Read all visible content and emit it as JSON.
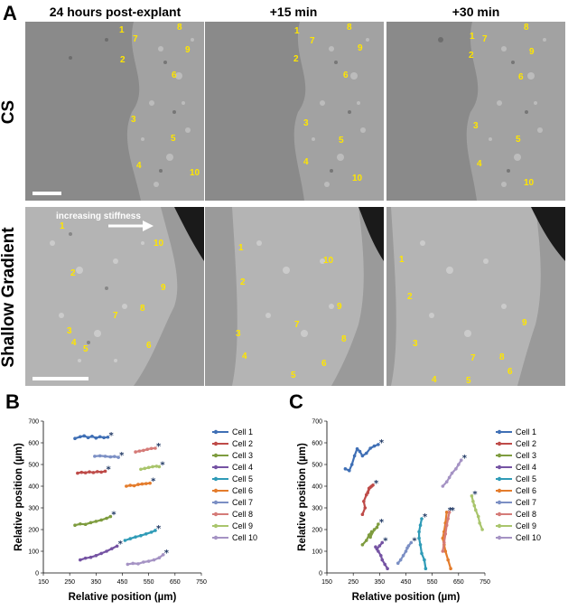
{
  "panel_a": {
    "letter": "A",
    "column_titles": [
      "24 hours post-explant",
      "+15 min",
      "+30 min"
    ],
    "row_labels": [
      "CS",
      "Shallow Gradient"
    ],
    "annotation": "increasing stiffness",
    "cs_labels": [
      [
        [
          "1",
          132,
          36
        ],
        [
          "7",
          147,
          46
        ],
        [
          "8",
          196,
          33
        ],
        [
          "9",
          205,
          58
        ],
        [
          "2",
          133,
          69
        ],
        [
          "6",
          190,
          86
        ],
        [
          "3",
          145,
          135
        ],
        [
          "5",
          189,
          156
        ],
        [
          "4",
          151,
          186
        ],
        [
          "10",
          210,
          194
        ]
      ],
      [
        [
          "1",
          326,
          37
        ],
        [
          "7",
          343,
          48
        ],
        [
          "8",
          384,
          33
        ],
        [
          "9",
          396,
          56
        ],
        [
          "2",
          325,
          68
        ],
        [
          "6",
          380,
          86
        ],
        [
          "3",
          336,
          139
        ],
        [
          "5",
          375,
          158
        ],
        [
          "4",
          336,
          182
        ],
        [
          "10",
          390,
          200
        ]
      ],
      [
        [
          "1",
          520,
          43
        ],
        [
          "7",
          534,
          46
        ],
        [
          "8",
          580,
          33
        ],
        [
          "9",
          586,
          60
        ],
        [
          "2",
          519,
          64
        ],
        [
          "6",
          574,
          88
        ],
        [
          "3",
          524,
          142
        ],
        [
          "5",
          571,
          157
        ],
        [
          "4",
          528,
          184
        ],
        [
          "10",
          580,
          205
        ]
      ]
    ],
    "sg_labels": [
      [
        [
          "1",
          66,
          253
        ],
        [
          "10",
          170,
          272
        ],
        [
          "2",
          78,
          305
        ],
        [
          "9",
          178,
          321
        ],
        [
          "8",
          155,
          344
        ],
        [
          "7",
          125,
          352
        ],
        [
          "3",
          74,
          369
        ],
        [
          "4",
          79,
          382
        ],
        [
          "5",
          92,
          389
        ],
        [
          "6",
          162,
          385
        ]
      ],
      [
        [
          "1",
          264,
          277
        ],
        [
          "10",
          358,
          291
        ],
        [
          "2",
          266,
          315
        ],
        [
          "9",
          373,
          342
        ],
        [
          "7",
          326,
          362
        ],
        [
          "3",
          261,
          372
        ],
        [
          "8",
          378,
          378
        ],
        [
          "4",
          268,
          397
        ],
        [
          "6",
          356,
          405
        ],
        [
          "5",
          322,
          418
        ]
      ],
      [
        [
          "1",
          442,
          290
        ],
        [
          "2",
          451,
          331
        ],
        [
          "9",
          578,
          360
        ],
        [
          "3",
          457,
          383
        ],
        [
          "7",
          521,
          399
        ],
        [
          "8",
          553,
          398
        ],
        [
          "6",
          562,
          414
        ],
        [
          "4",
          478,
          423
        ],
        [
          "5",
          516,
          424
        ]
      ]
    ]
  },
  "chart_data": [
    {
      "panel": "B",
      "type": "line",
      "xlabel": "Relative position (µm)",
      "ylabel": "Relative position (µm)",
      "xlim": [
        150,
        750
      ],
      "ylim": [
        0,
        700
      ],
      "xticks": [
        150,
        250,
        350,
        450,
        550,
        650,
        750
      ],
      "yticks": [
        0,
        100,
        200,
        300,
        400,
        500,
        600,
        700
      ],
      "legend_position": "right",
      "series": [
        {
          "name": "Cell 1",
          "color": "#3f6fb5",
          "x": [
            270,
            290,
            305,
            320,
            335,
            350,
            365,
            380,
            395
          ],
          "y": [
            620,
            628,
            632,
            624,
            630,
            622,
            628,
            624,
            626
          ]
        },
        {
          "name": "Cell 2",
          "color": "#be4b48",
          "x": [
            280,
            295,
            310,
            325,
            340,
            355,
            370,
            385
          ],
          "y": [
            460,
            464,
            462,
            466,
            463,
            467,
            465,
            469
          ]
        },
        {
          "name": "Cell 3",
          "color": "#7e9c3f",
          "x": [
            270,
            290,
            310,
            330,
            350,
            370,
            390,
            405
          ],
          "y": [
            220,
            226,
            224,
            232,
            238,
            244,
            252,
            260
          ]
        },
        {
          "name": "Cell 4",
          "color": "#7553a3",
          "x": [
            290,
            310,
            330,
            350,
            370,
            390,
            410,
            430
          ],
          "y": [
            60,
            68,
            72,
            80,
            90,
            100,
            112,
            124
          ]
        },
        {
          "name": "Cell 5",
          "color": "#2f9bb7",
          "x": [
            460,
            480,
            500,
            520,
            540,
            560,
            575
          ],
          "y": [
            150,
            158,
            166,
            172,
            180,
            188,
            196
          ]
        },
        {
          "name": "Cell 6",
          "color": "#e47c2c",
          "x": [
            465,
            480,
            495,
            510,
            525,
            540,
            555
          ],
          "y": [
            400,
            404,
            402,
            408,
            410,
            412,
            414
          ]
        },
        {
          "name": "Cell 7",
          "color": "#7b8fc4",
          "x": [
            345,
            365,
            385,
            405,
            420,
            435
          ],
          "y": [
            538,
            540,
            538,
            535,
            537,
            533
          ]
        },
        {
          "name": "Cell 8",
          "color": "#d57b78",
          "x": [
            500,
            515,
            530,
            545,
            560,
            575
          ],
          "y": [
            558,
            562,
            565,
            570,
            574,
            575
          ]
        },
        {
          "name": "Cell 9",
          "color": "#a9c56c",
          "x": [
            520,
            535,
            550,
            565,
            580,
            590
          ],
          "y": [
            478,
            482,
            486,
            490,
            492,
            490
          ]
        },
        {
          "name": "Cell 10",
          "color": "#a593c4",
          "x": [
            470,
            490,
            510,
            530,
            550,
            570,
            590,
            605
          ],
          "y": [
            40,
            44,
            42,
            50,
            54,
            60,
            70,
            84
          ]
        }
      ]
    },
    {
      "panel": "C",
      "type": "line",
      "xlabel": "Relative position (µm)",
      "ylabel": "Relative position (µm)",
      "xlim": [
        150,
        750
      ],
      "ylim": [
        0,
        700
      ],
      "xticks": [
        150,
        250,
        350,
        450,
        550,
        650,
        750
      ],
      "yticks": [
        0,
        100,
        200,
        300,
        400,
        500,
        600,
        700
      ],
      "legend_position": "right",
      "series": [
        {
          "name": "Cell 1",
          "color": "#3f6fb5",
          "x": [
            220,
            235,
            245,
            255,
            265,
            275,
            285,
            300,
            315,
            330,
            345
          ],
          "y": [
            480,
            472,
            500,
            540,
            572,
            560,
            540,
            552,
            575,
            585,
            592
          ]
        },
        {
          "name": "Cell 2",
          "color": "#be4b48",
          "x": [
            285,
            295,
            290,
            300,
            310,
            305,
            315,
            320,
            325
          ],
          "y": [
            270,
            300,
            330,
            360,
            390,
            370,
            395,
            400,
            405
          ]
        },
        {
          "name": "Cell 3",
          "color": "#7e9c3f",
          "x": [
            285,
            300,
            310,
            320,
            315,
            330,
            340,
            345
          ],
          "y": [
            130,
            150,
            175,
            190,
            165,
            200,
            210,
            225
          ]
        },
        {
          "name": "Cell 4",
          "color": "#7553a3",
          "x": [
            380,
            370,
            360,
            355,
            345,
            335,
            340,
            350,
            360
          ],
          "y": [
            20,
            40,
            60,
            80,
            100,
            120,
            110,
            125,
            140
          ]
        },
        {
          "name": "Cell 5",
          "color": "#2f9bb7",
          "x": [
            525,
            520,
            510,
            505,
            500,
            500,
            505,
            510
          ],
          "y": [
            20,
            60,
            90,
            130,
            160,
            190,
            220,
            250
          ]
        },
        {
          "name": "Cell 6",
          "color": "#e47c2c",
          "x": [
            620,
            610,
            600,
            595,
            590,
            595,
            600,
            605
          ],
          "y": [
            20,
            60,
            100,
            130,
            160,
            190,
            230,
            280
          ]
        },
        {
          "name": "Cell 7",
          "color": "#7b8fc4",
          "x": [
            420,
            430,
            440,
            450,
            455,
            460,
            470
          ],
          "y": [
            45,
            60,
            80,
            100,
            115,
            125,
            140
          ]
        },
        {
          "name": "Cell 8",
          "color": "#d57b78",
          "x": [
            590,
            595,
            600,
            605,
            610,
            615
          ],
          "y": [
            100,
            140,
            180,
            220,
            250,
            280
          ]
        },
        {
          "name": "Cell 9",
          "color": "#a9c56c",
          "x": [
            740,
            730,
            725,
            715,
            710,
            705,
            700
          ],
          "y": [
            200,
            230,
            260,
            290,
            310,
            330,
            355
          ]
        },
        {
          "name": "Cell 10",
          "color": "#a593c4",
          "x": [
            590,
            605,
            615,
            625,
            640,
            650,
            660
          ],
          "y": [
            400,
            420,
            440,
            460,
            480,
            500,
            520
          ]
        }
      ]
    }
  ]
}
